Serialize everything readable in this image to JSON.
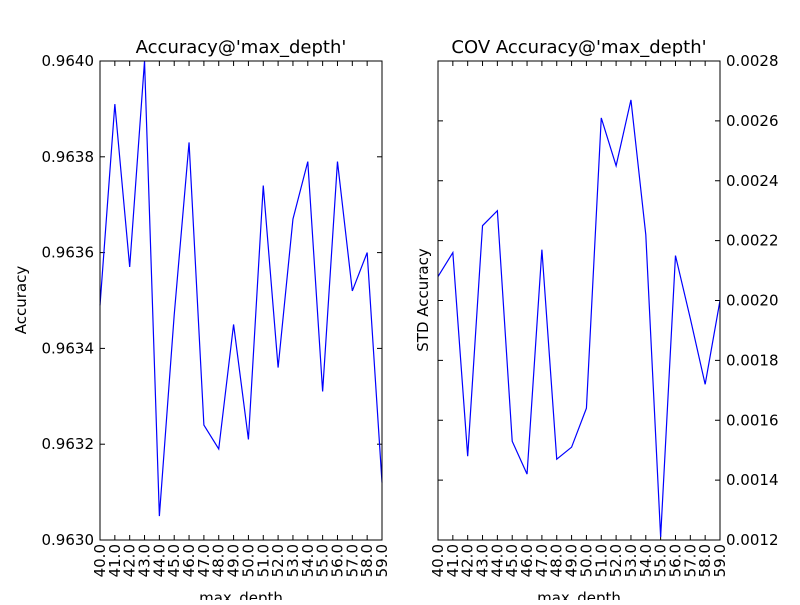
{
  "chart_data": [
    {
      "type": "line",
      "title": "Accuracy@'max_depth'",
      "xlabel": "max_depth",
      "ylabel": "Accuracy",
      "ylim": [
        0.963,
        0.964
      ],
      "yticks": [
        "0.9630",
        "0.9632",
        "0.9634",
        "0.9636",
        "0.9638",
        "0.9640"
      ],
      "ytick_side": "left",
      "x": [
        40.0,
        41.0,
        42.0,
        43.0,
        44.0,
        45.0,
        46.0,
        47.0,
        48.0,
        49.0,
        50.0,
        51.0,
        52.0,
        53.0,
        54.0,
        55.0,
        56.0,
        57.0,
        58.0,
        59.0
      ],
      "xticks": [
        "40.0",
        "41.0",
        "42.0",
        "43.0",
        "44.0",
        "45.0",
        "46.0",
        "47.0",
        "48.0",
        "49.0",
        "50.0",
        "51.0",
        "52.0",
        "53.0",
        "54.0",
        "55.0",
        "56.0",
        "57.0",
        "58.0",
        "59.0"
      ],
      "series": [
        {
          "values": [
            0.96349,
            0.96391,
            0.96357,
            0.964,
            0.96305,
            0.96347,
            0.96383,
            0.96324,
            0.96319,
            0.96345,
            0.96321,
            0.96374,
            0.96336,
            0.96367,
            0.96379,
            0.96331,
            0.96379,
            0.96352,
            0.9636,
            0.96312
          ],
          "color": "#0000ff"
        }
      ]
    },
    {
      "type": "line",
      "title": "COV Accuracy@'max_depth'",
      "xlabel": "max_depth",
      "ylabel": "STD Accuracy",
      "ylim": [
        0.0012,
        0.0028
      ],
      "yticks": [
        "0.0012",
        "0.0014",
        "0.0016",
        "0.0018",
        "0.0020",
        "0.0022",
        "0.0024",
        "0.0026",
        "0.0028"
      ],
      "ytick_side": "right",
      "x": [
        40.0,
        41.0,
        42.0,
        43.0,
        44.0,
        45.0,
        46.0,
        47.0,
        48.0,
        49.0,
        50.0,
        51.0,
        52.0,
        53.0,
        54.0,
        55.0,
        56.0,
        57.0,
        58.0,
        59.0
      ],
      "xticks": [
        "40.0",
        "41.0",
        "42.0",
        "43.0",
        "44.0",
        "45.0",
        "46.0",
        "47.0",
        "48.0",
        "49.0",
        "50.0",
        "51.0",
        "52.0",
        "53.0",
        "54.0",
        "55.0",
        "56.0",
        "57.0",
        "58.0",
        "59.0"
      ],
      "series": [
        {
          "values": [
            0.00208,
            0.00216,
            0.00148,
            0.00225,
            0.0023,
            0.00153,
            0.00142,
            0.00217,
            0.00147,
            0.00151,
            0.00164,
            0.00261,
            0.00245,
            0.00267,
            0.00222,
            0.00121,
            0.00215,
            0.00194,
            0.00172,
            0.002
          ],
          "color": "#0000ff"
        }
      ]
    }
  ]
}
